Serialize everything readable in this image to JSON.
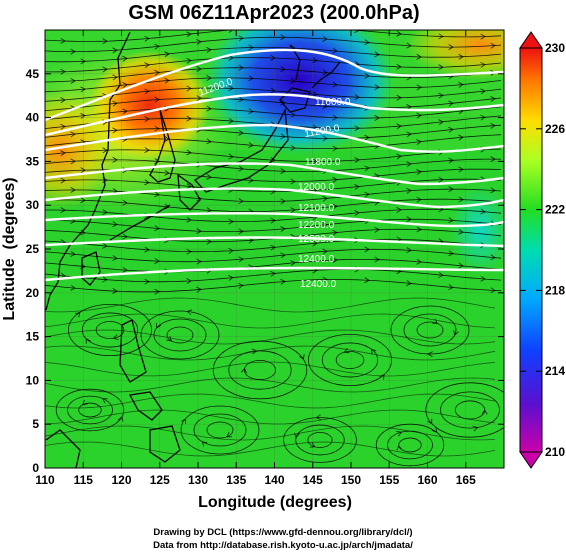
{
  "title": "GSM 06Z11Apr2023 (200.0hPa)",
  "chart_data": {
    "type": "map",
    "xlabel": "Longitude (degrees)",
    "ylabel": "Latitude  (degrees)",
    "xlim": [
      110,
      170
    ],
    "ylim": [
      0,
      50
    ],
    "x_ticks": [
      "110",
      "115",
      "120",
      "125",
      "130",
      "135",
      "140",
      "145",
      "150",
      "155",
      "160",
      "165"
    ],
    "y_ticks": [
      "0",
      "5",
      "10",
      "15",
      "20",
      "25",
      "30",
      "35",
      "40",
      "45"
    ],
    "colorbar": {
      "ticks": [
        "210",
        "214",
        "218",
        "222",
        "226",
        "230"
      ],
      "min": 210,
      "max": 230,
      "colors": [
        "#cc00aa",
        "#3b10d8",
        "#00aaff",
        "#00ddbb",
        "#22dd22",
        "#aaff22",
        "#ffdd00",
        "#ff7700",
        "#ee1111"
      ]
    },
    "contours": [
      {
        "label": "11200.0",
        "value": 11200
      },
      {
        "label": "11600.0",
        "value": 11600
      },
      {
        "label": "11800.0",
        "value": 11800
      },
      {
        "label": "12000.0",
        "value": 12000
      },
      {
        "label": "12100.0",
        "value": 12100
      },
      {
        "label": "12200.0",
        "value": 12200
      },
      {
        "label": "12300.0",
        "value": 12300
      },
      {
        "label": "12400.0",
        "value": 12400
      }
    ]
  },
  "credits": {
    "drawing": "Drawing by DCL (https://www.gfd-dennou.org/library/dcl/)",
    "data": "Data from http://database.rish.kyoto-u.ac.jp/arch/jmadata/"
  }
}
